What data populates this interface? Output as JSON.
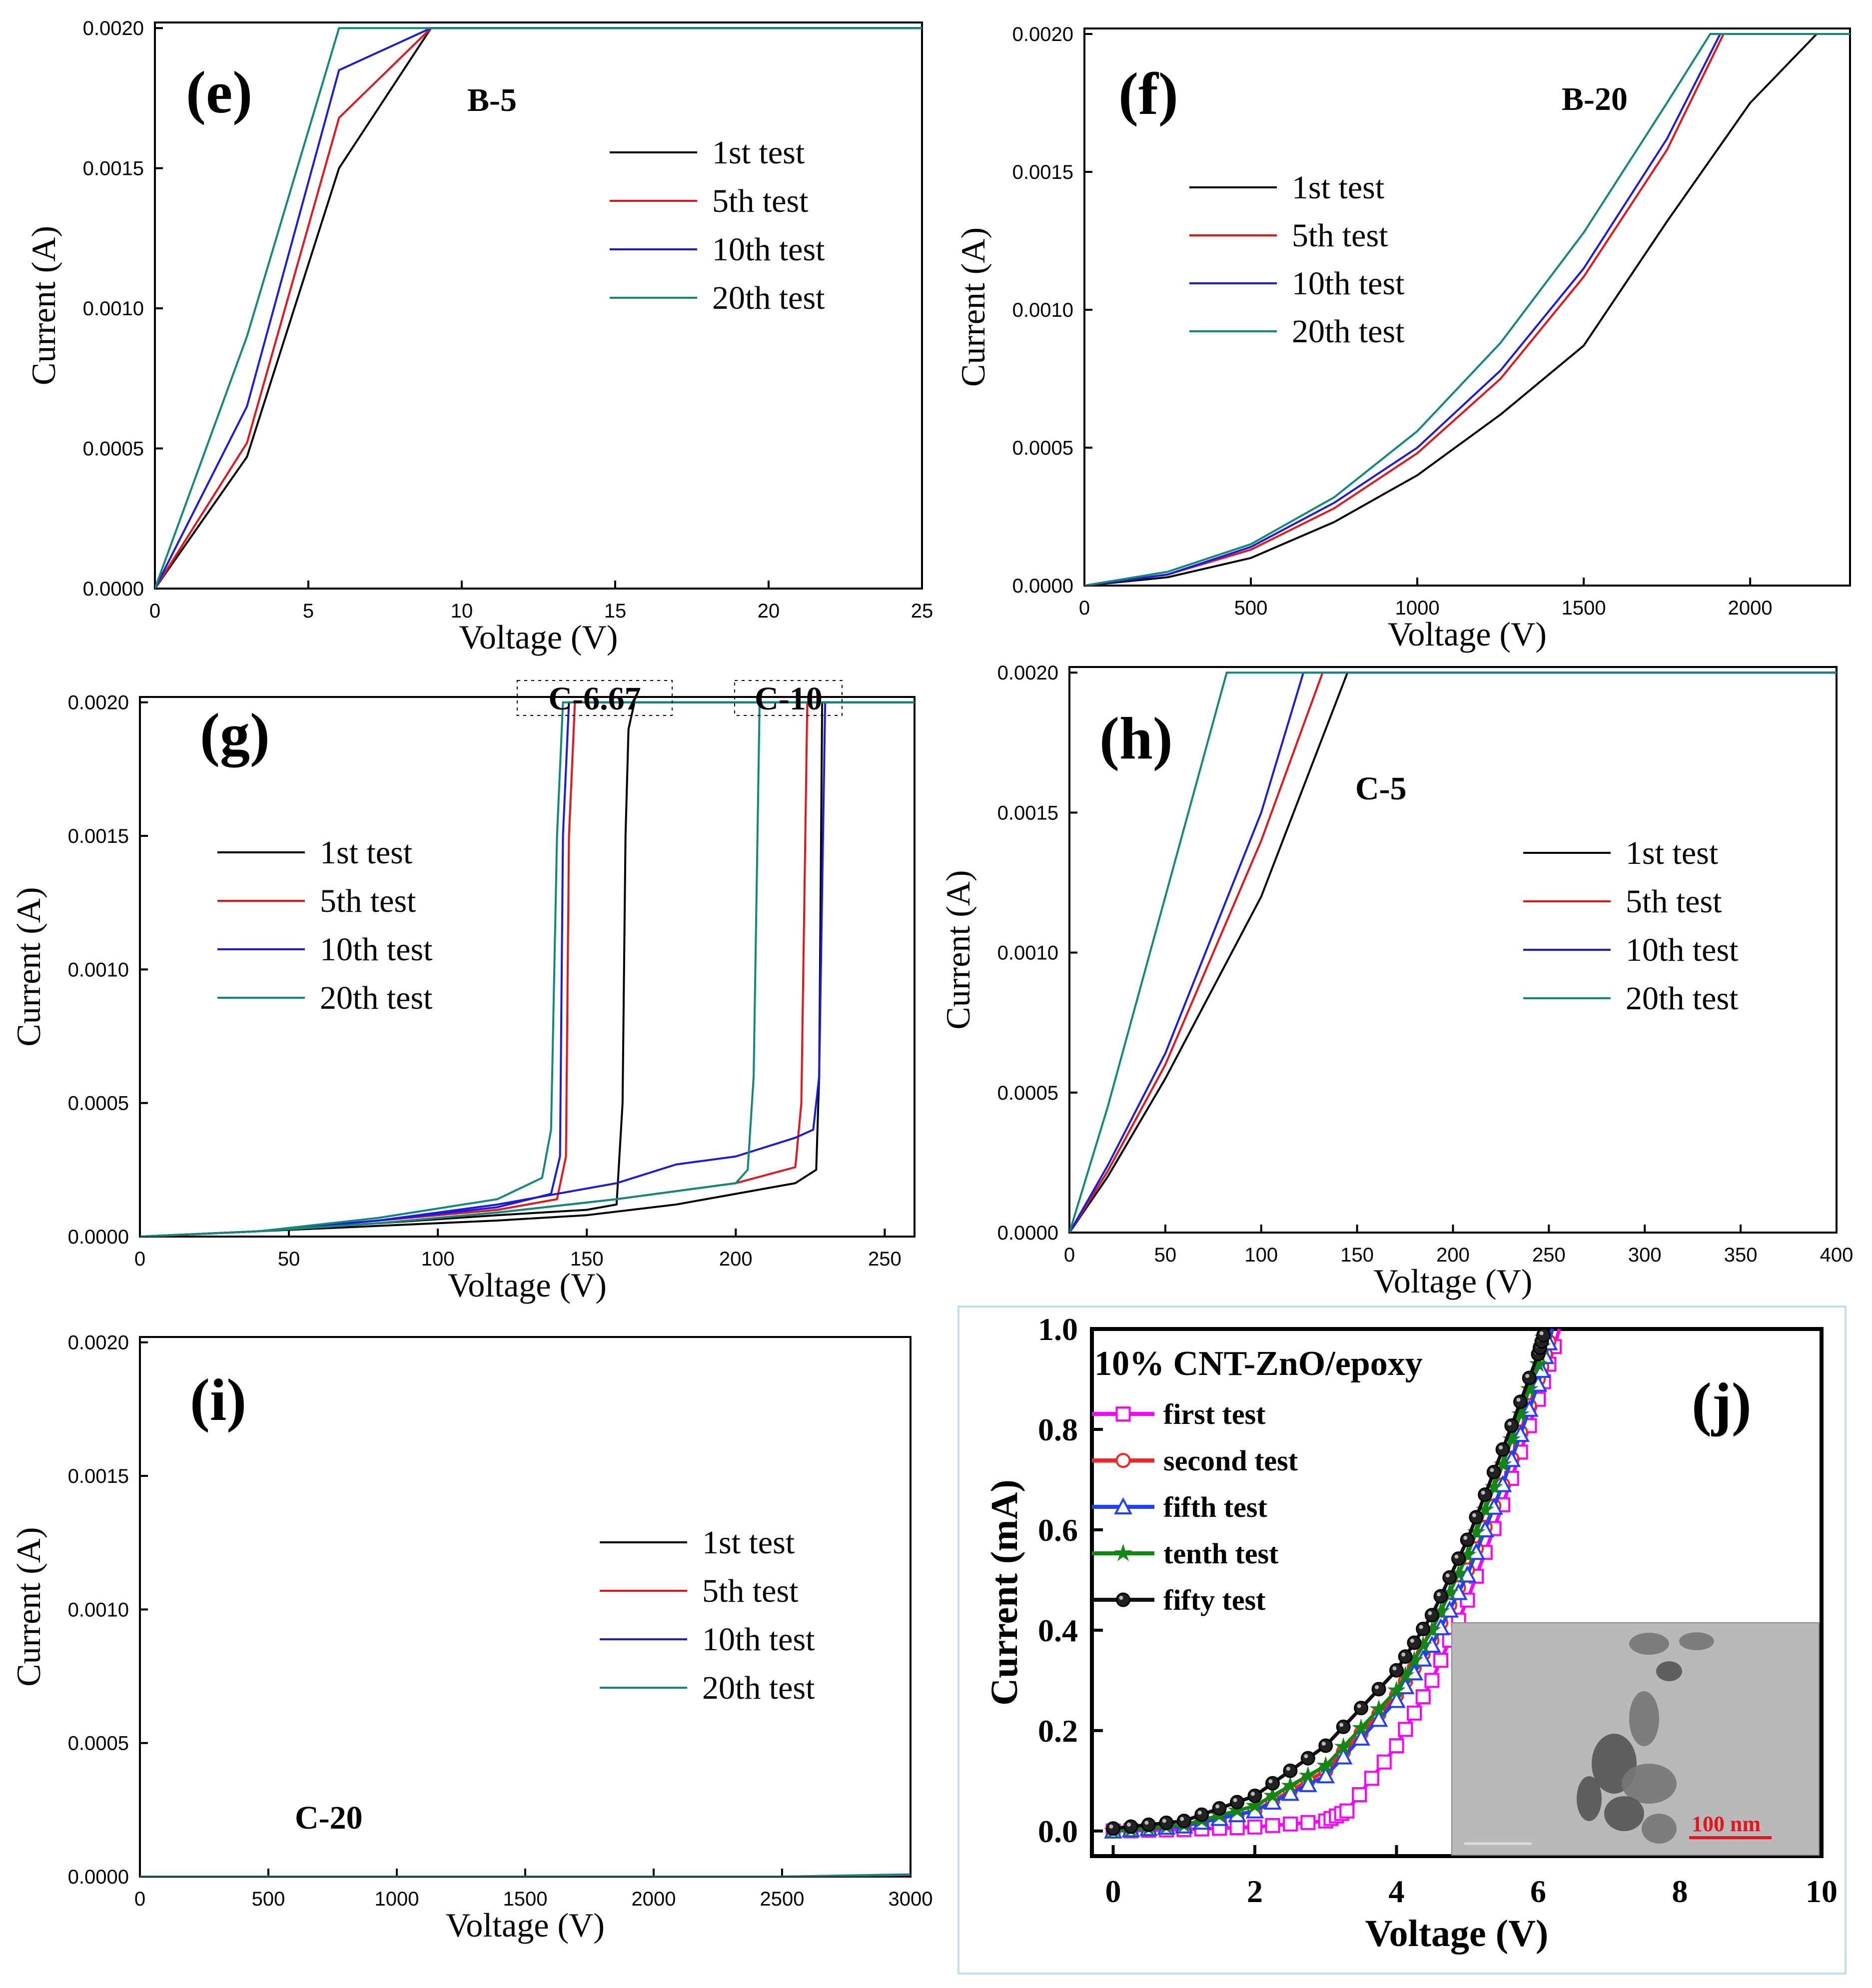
{
  "colors": {
    "1st test": "#000000",
    "5th test": "#e8141c",
    "10th test": "#1a1ae0",
    "20th test": "#0f8a7a",
    "first test": "#ff00ff",
    "second test": "#ff2020",
    "fifth test": "#2040ff",
    "tenth test": "#118811",
    "fifty test": "#111111"
  },
  "chart_data": [
    {
      "panel": "(e)",
      "sample": "B-5",
      "type": "line",
      "xlabel": "Voltage (V)",
      "ylabel": "Current (A)",
      "xlim": [
        0,
        25
      ],
      "ylim": [
        0,
        0.00202
      ],
      "xticks": [
        0,
        5,
        10,
        15,
        20,
        25
      ],
      "xtick_labels": [
        "0",
        "5",
        "10",
        "15",
        "20",
        "25"
      ],
      "yticks": [
        0,
        0.0005,
        0.001,
        0.0015,
        0.002
      ],
      "ytick_labels": [
        "0.0000",
        "0.0005",
        "0.0010",
        "0.0015",
        "0.0020"
      ],
      "legend": [
        "1st test",
        "5th test",
        "10th test",
        "20th test"
      ],
      "series": [
        {
          "name": "1st test",
          "x": [
            0,
            3,
            6,
            9,
            25
          ],
          "y": [
            0,
            0.00047,
            0.0015,
            0.002,
            0.002
          ]
        },
        {
          "name": "5th test",
          "x": [
            0,
            3,
            6,
            9,
            25
          ],
          "y": [
            0,
            0.00052,
            0.00168,
            0.002,
            0.002
          ]
        },
        {
          "name": "10th test",
          "x": [
            0,
            3,
            6,
            9,
            25
          ],
          "y": [
            0,
            0.00065,
            0.00185,
            0.002,
            0.002
          ]
        },
        {
          "name": "20th test",
          "x": [
            0,
            3,
            6,
            25
          ],
          "y": [
            0,
            0.0009,
            0.002,
            0.002
          ]
        }
      ]
    },
    {
      "panel": "(f)",
      "sample": "B-20",
      "type": "line",
      "xlabel": "Voltage (V)",
      "ylabel": "Current (A)",
      "xlim": [
        0,
        2300
      ],
      "ylim": [
        0,
        0.00202
      ],
      "xticks": [
        0,
        500,
        1000,
        1500,
        2000
      ],
      "xtick_labels": [
        "0",
        "500",
        "1000",
        "1500",
        "2000"
      ],
      "yticks": [
        0,
        0.0005,
        0.001,
        0.0015,
        0.002
      ],
      "ytick_labels": [
        "0.0000",
        "0.0005",
        "0.0010",
        "0.0015",
        "0.0020"
      ],
      "legend": [
        "1st test",
        "5th test",
        "10th test",
        "20th test"
      ],
      "series": [
        {
          "name": "1st test",
          "x": [
            0,
            250,
            500,
            750,
            1000,
            1250,
            1500,
            1750,
            2000,
            2200,
            2300
          ],
          "y": [
            0,
            3e-05,
            0.0001,
            0.00023,
            0.0004,
            0.00062,
            0.00087,
            0.00132,
            0.00175,
            0.002,
            0.002
          ]
        },
        {
          "name": "5th test",
          "x": [
            0,
            250,
            500,
            750,
            1000,
            1250,
            1500,
            1750,
            1920,
            2300
          ],
          "y": [
            0,
            4e-05,
            0.00013,
            0.00028,
            0.00048,
            0.00075,
            0.00112,
            0.00158,
            0.002,
            0.002
          ]
        },
        {
          "name": "10th test",
          "x": [
            0,
            250,
            500,
            750,
            1000,
            1250,
            1500,
            1750,
            1910,
            2300
          ],
          "y": [
            0,
            4e-05,
            0.00014,
            0.0003,
            0.0005,
            0.00078,
            0.00115,
            0.00162,
            0.002,
            0.002
          ]
        },
        {
          "name": "20th test",
          "x": [
            0,
            250,
            500,
            750,
            1000,
            1250,
            1500,
            1750,
            1880,
            2300
          ],
          "y": [
            0,
            5e-05,
            0.00015,
            0.00032,
            0.00056,
            0.00088,
            0.00128,
            0.00175,
            0.002,
            0.002
          ]
        }
      ]
    },
    {
      "panel": "(g)",
      "sample": "",
      "annotations": [
        "C-6.67",
        "C-10"
      ],
      "type": "line",
      "xlabel": "Voltage (V)",
      "ylabel": "Current (A)",
      "xlim": [
        0,
        260
      ],
      "ylim": [
        0,
        0.00202
      ],
      "xticks": [
        0,
        50,
        100,
        150,
        200,
        250
      ],
      "xtick_labels": [
        "0",
        "50",
        "100",
        "150",
        "200",
        "250"
      ],
      "yticks": [
        0,
        0.0005,
        0.001,
        0.0015,
        0.002
      ],
      "ytick_labels": [
        "0.0000",
        "0.0005",
        "0.0010",
        "0.0015",
        "0.0020"
      ],
      "legend": [
        "1st test",
        "5th test",
        "10th test",
        "20th test"
      ],
      "series": [
        {
          "name": "1st test",
          "x": [
            0,
            40,
            80,
            120,
            150,
            160,
            162,
            163,
            164,
            166,
            260
          ],
          "y": [
            0,
            2e-05,
            5e-05,
            8e-05,
            0.0001,
            0.00012,
            0.0005,
            0.0015,
            0.0019,
            0.002,
            0.002
          ]
        },
        {
          "name": "1st test",
          "x": [
            0,
            40,
            80,
            120,
            150,
            180,
            200,
            220,
            227,
            228,
            229,
            260
          ],
          "y": [
            0,
            2e-05,
            4e-05,
            6e-05,
            8e-05,
            0.00012,
            0.00016,
            0.0002,
            0.00025,
            0.0006,
            0.002,
            0.002
          ]
        },
        {
          "name": "5th test",
          "x": [
            0,
            40,
            80,
            120,
            140,
            143,
            144,
            146,
            260
          ],
          "y": [
            0,
            2e-05,
            6e-05,
            0.0001,
            0.00014,
            0.0003,
            0.0015,
            0.002,
            0.002
          ]
        },
        {
          "name": "5th test",
          "x": [
            0,
            40,
            80,
            120,
            160,
            200,
            220,
            222,
            224,
            260
          ],
          "y": [
            0,
            2e-05,
            5e-05,
            9e-05,
            0.00014,
            0.0002,
            0.00026,
            0.0005,
            0.002,
            0.002
          ]
        },
        {
          "name": "10th test",
          "x": [
            0,
            40,
            80,
            120,
            138,
            141,
            142,
            144,
            260
          ],
          "y": [
            0,
            2e-05,
            6e-05,
            0.00011,
            0.00016,
            0.0003,
            0.0015,
            0.002,
            0.002
          ]
        },
        {
          "name": "10th test",
          "x": [
            0,
            40,
            80,
            120,
            160,
            180,
            200,
            220,
            226,
            228,
            230,
            260
          ],
          "y": [
            0,
            2e-05,
            6e-05,
            0.00012,
            0.0002,
            0.00027,
            0.0003,
            0.00037,
            0.0004,
            0.0006,
            0.002,
            0.002
          ]
        },
        {
          "name": "20th test",
          "x": [
            0,
            40,
            80,
            120,
            135,
            138,
            140,
            142,
            260
          ],
          "y": [
            0,
            2e-05,
            7e-05,
            0.00014,
            0.00022,
            0.0004,
            0.0015,
            0.002,
            0.002
          ]
        },
        {
          "name": "20th test",
          "x": [
            0,
            40,
            80,
            120,
            160,
            200,
            204,
            206,
            208,
            260
          ],
          "y": [
            0,
            2e-05,
            5e-05,
            9e-05,
            0.00014,
            0.0002,
            0.00025,
            0.0006,
            0.002,
            0.002
          ]
        }
      ]
    },
    {
      "panel": "(h)",
      "sample": "C-5",
      "type": "line",
      "xlabel": "Voltage (V)",
      "ylabel": "Current (A)",
      "xlim": [
        0,
        400
      ],
      "ylim": [
        0,
        0.00202
      ],
      "xticks": [
        0,
        50,
        100,
        150,
        200,
        250,
        300,
        350,
        400
      ],
      "xtick_labels": [
        "0",
        "50",
        "100",
        "150",
        "200",
        "250",
        "300",
        "350",
        "400"
      ],
      "yticks": [
        0,
        0.0005,
        0.001,
        0.0015,
        0.002
      ],
      "ytick_labels": [
        "0.0000",
        "0.0005",
        "0.0010",
        "0.0015",
        "0.0020"
      ],
      "legend": [
        "1st test",
        "5th test",
        "10th test",
        "20th test"
      ],
      "series": [
        {
          "name": "1st test",
          "x": [
            0,
            20,
            50,
            100,
            145,
            400
          ],
          "y": [
            0,
            0.0002,
            0.00055,
            0.0012,
            0.002,
            0.002
          ]
        },
        {
          "name": "5th test",
          "x": [
            0,
            20,
            50,
            100,
            132,
            400
          ],
          "y": [
            0,
            0.00022,
            0.0006,
            0.0014,
            0.002,
            0.002
          ]
        },
        {
          "name": "10th test",
          "x": [
            0,
            20,
            50,
            100,
            122,
            400
          ],
          "y": [
            0,
            0.00024,
            0.00064,
            0.0015,
            0.002,
            0.002
          ]
        },
        {
          "name": "20th test",
          "x": [
            0,
            20,
            50,
            82,
            400
          ],
          "y": [
            0,
            0.00045,
            0.0012,
            0.002,
            0.002
          ]
        }
      ]
    },
    {
      "panel": "(i)",
      "sample": "C-20",
      "type": "line",
      "xlabel": "Voltage (V)",
      "ylabel": "Current (A)",
      "xlim": [
        0,
        3000
      ],
      "ylim": [
        0,
        0.00202
      ],
      "xticks": [
        0,
        500,
        1000,
        1500,
        2000,
        2500,
        3000
      ],
      "xtick_labels": [
        "0",
        "500",
        "1000",
        "1500",
        "2000",
        "2500",
        "3000"
      ],
      "yticks": [
        0,
        0.0005,
        0.001,
        0.0015,
        0.002
      ],
      "ytick_labels": [
        "0.0000",
        "0.0005",
        "0.0010",
        "0.0015",
        "0.0020"
      ],
      "legend": [
        "1st test",
        "5th test",
        "10th test",
        "20th test"
      ],
      "series": [
        {
          "name": "1st test",
          "x": [
            0,
            2500,
            3000
          ],
          "y": [
            0,
            0,
            5e-06
          ]
        },
        {
          "name": "5th test",
          "x": [
            0,
            2500,
            3000
          ],
          "y": [
            0,
            0,
            6e-06
          ]
        },
        {
          "name": "10th test",
          "x": [
            0,
            2500,
            3000
          ],
          "y": [
            0,
            0,
            8e-06
          ]
        },
        {
          "name": "20th test",
          "x": [
            0,
            2500,
            3000
          ],
          "y": [
            0,
            0,
            7e-06
          ]
        }
      ]
    },
    {
      "panel": "(j)",
      "title": "10% CNT-ZnO/epoxy",
      "scale_bar": "100 nm",
      "type": "line",
      "xlabel": "Voltage (V)",
      "ylabel": "Current (mA)",
      "xlim": [
        -0.3,
        10
      ],
      "ylim": [
        -0.05,
        1.0
      ],
      "xticks": [
        0,
        2,
        4,
        6,
        8,
        10
      ],
      "xtick_labels": [
        "0",
        "2",
        "4",
        "6",
        "8",
        "10"
      ],
      "yticks": [
        0,
        0.2,
        0.4,
        0.6,
        0.8,
        1.0
      ],
      "ytick_labels": [
        "0.0",
        "0.2",
        "0.4",
        "0.6",
        "0.8",
        "1.0"
      ],
      "legend": [
        "first test",
        "second test",
        "fifth test",
        "tenth test",
        "fifty test"
      ],
      "series": [
        {
          "name": "first test",
          "marker": "square",
          "x": [
            0,
            1,
            2,
            3,
            3.3,
            4,
            4.5,
            5,
            5.5,
            6,
            6.3
          ],
          "y": [
            0,
            0.003,
            0.008,
            0.02,
            0.04,
            0.17,
            0.3,
            0.46,
            0.65,
            0.86,
            1.0
          ]
        },
        {
          "name": "second test",
          "marker": "circle",
          "x": [
            0,
            1,
            2,
            3,
            4,
            4.5,
            5,
            5.5,
            6,
            6.2
          ],
          "y": [
            0,
            0.01,
            0.04,
            0.12,
            0.27,
            0.38,
            0.52,
            0.69,
            0.9,
            1.0
          ]
        },
        {
          "name": "fifth test",
          "marker": "triangle",
          "x": [
            0,
            1,
            2,
            3,
            4,
            4.5,
            5,
            5.5,
            6,
            6.2
          ],
          "y": [
            0,
            0.01,
            0.04,
            0.11,
            0.26,
            0.37,
            0.51,
            0.69,
            0.89,
            1.0
          ]
        },
        {
          "name": "tenth test",
          "marker": "star",
          "x": [
            0,
            1,
            2,
            3,
            4,
            4.5,
            5,
            5.5,
            6,
            6.1
          ],
          "y": [
            0,
            0.012,
            0.05,
            0.13,
            0.28,
            0.4,
            0.55,
            0.73,
            0.93,
            1.0
          ]
        },
        {
          "name": "fifty test",
          "marker": "filled-circle",
          "x": [
            0,
            1,
            2,
            3,
            4,
            4.5,
            5,
            5.5,
            6,
            6.1
          ],
          "y": [
            0.005,
            0.02,
            0.07,
            0.17,
            0.32,
            0.43,
            0.58,
            0.76,
            0.95,
            1.0
          ]
        }
      ]
    }
  ]
}
